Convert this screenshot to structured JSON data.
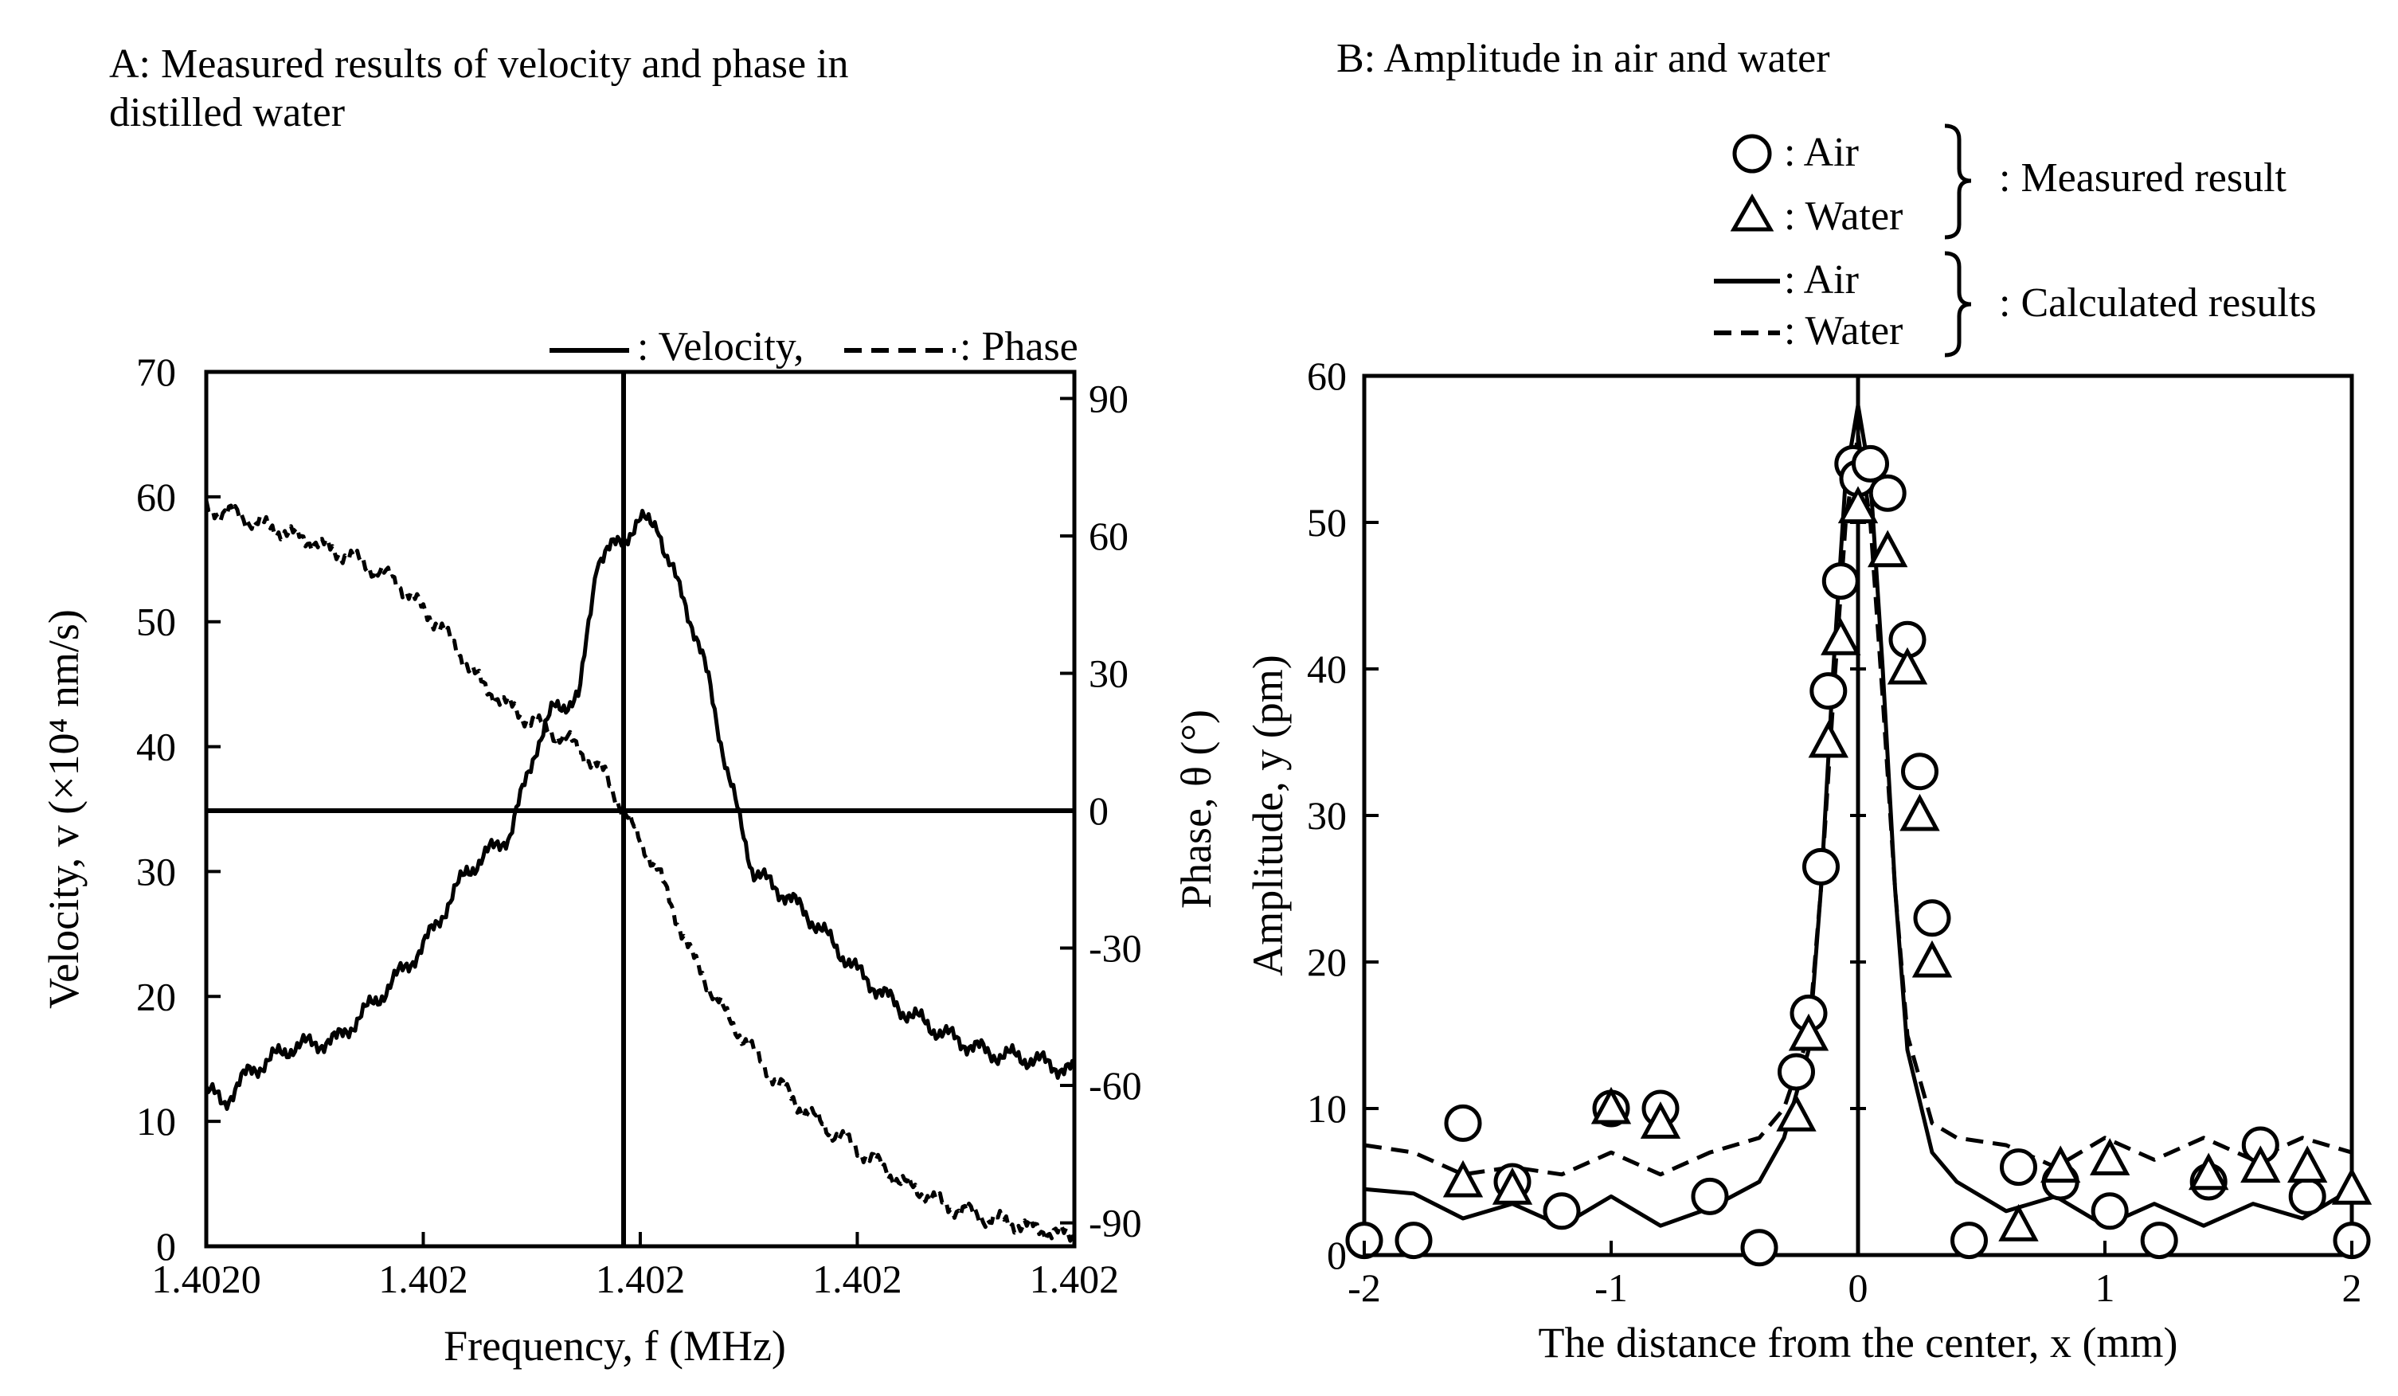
{
  "panel_a": {
    "title_line1": "A: Measured results of velocity and phase in",
    "title_line2": "distilled water",
    "legend_velocity": ": Velocity,",
    "legend_phase": ": Phase",
    "ylabel_left": "Velocity, v (×10⁴ nm/s)",
    "ylabel_right": "Phase,  θ  (°)",
    "xlabel": "Frequency, f (MHz)"
  },
  "panel_b": {
    "title": "B: Amplitude in air and water",
    "legend_air": ": Air",
    "legend_water": ": Water",
    "legend_measured": ": Measured result",
    "legend_calculated": ": Calculated results",
    "ylabel": "Amplitude, y (pm)",
    "xlabel": "The distance from the center, x (mm)"
  },
  "chart_data": [
    {
      "type": "line",
      "title": "A: Measured results of velocity and phase in distilled water",
      "xlabel": "Frequency, f (MHz)",
      "ylabel": "Velocity, v (×10⁴ nm/s)",
      "y2label": "Phase, θ (°)",
      "x_tick_labels": [
        "1.4020",
        "1.402",
        "1.402",
        "1.402",
        "1.402"
      ],
      "xlim": [
        0,
        1
      ],
      "ylim": [
        0,
        70
      ],
      "y_ticks": [
        0,
        10,
        20,
        30,
        40,
        50,
        60,
        70
      ],
      "y2lim": [
        -100,
        100
      ],
      "y2_ticks": [
        90,
        60,
        30,
        0,
        -30,
        -60,
        -90
      ],
      "reference_lines": {
        "x_fraction": 0.48,
        "phase_zero": 0
      },
      "series": [
        {
          "name": "Velocity",
          "axis": "left",
          "style": "solid",
          "x": [
            0,
            0.02,
            0.05,
            0.1,
            0.15,
            0.2,
            0.25,
            0.3,
            0.35,
            0.38,
            0.4,
            0.43,
            0.45,
            0.47,
            0.5,
            0.52,
            0.53,
            0.55,
            0.58,
            0.6,
            0.63,
            0.65,
            0.67,
            0.7,
            0.75,
            0.8,
            0.85,
            0.9,
            0.95,
            1.0
          ],
          "values": [
            12.5,
            11.5,
            14,
            16,
            16.5,
            20,
            24,
            30,
            33,
            40,
            43,
            44,
            55,
            56,
            58,
            58,
            55,
            52,
            45,
            38,
            30,
            29,
            28,
            26,
            22,
            19,
            17,
            15.5,
            15,
            14
          ]
        },
        {
          "name": "Phase",
          "axis": "right",
          "style": "dashed",
          "x": [
            0,
            0.03,
            0.07,
            0.12,
            0.17,
            0.22,
            0.27,
            0.32,
            0.37,
            0.42,
            0.46,
            0.48,
            0.52,
            0.56,
            0.6,
            0.64,
            0.68,
            0.72,
            0.76,
            0.8,
            0.85,
            0.9,
            0.95,
            1.0
          ],
          "values": [
            66,
            65,
            62,
            59,
            55,
            50,
            40,
            27,
            20,
            15,
            8,
            0,
            -13,
            -32,
            -45,
            -55,
            -64,
            -70,
            -75,
            -81,
            -86,
            -89,
            -91,
            -93
          ]
        }
      ]
    },
    {
      "type": "scatter",
      "title": "B: Amplitude in air and water",
      "xlabel": "The distance from the center, x (mm)",
      "ylabel": "Amplitude, y (pm)",
      "xlim": [
        -2,
        2
      ],
      "x_ticks": [
        -2,
        -1,
        0,
        1,
        2
      ],
      "ylim": [
        0,
        60
      ],
      "y_ticks": [
        0,
        10,
        20,
        30,
        40,
        50,
        60
      ],
      "series": [
        {
          "name": "Air (measured)",
          "marker": "circle",
          "x": [
            -2.0,
            -1.8,
            -1.6,
            -1.4,
            -1.2,
            -1.0,
            -0.8,
            -0.6,
            -0.4,
            -0.25,
            -0.2,
            -0.15,
            -0.12,
            -0.07,
            -0.02,
            0.0,
            0.05,
            0.12,
            0.2,
            0.25,
            0.3,
            0.45,
            0.65,
            0.82,
            1.02,
            1.22,
            1.42,
            1.63,
            1.82,
            2.0
          ],
          "values": [
            1,
            1,
            9,
            5,
            3,
            10,
            10,
            4,
            0.5,
            12.5,
            16.5,
            26.5,
            38.5,
            46,
            54,
            53,
            54,
            52,
            42,
            33,
            23,
            1,
            6,
            5,
            3,
            1,
            5,
            7.5,
            4,
            1
          ]
        },
        {
          "name": "Water (measured)",
          "marker": "triangle",
          "x": [
            -1.6,
            -1.4,
            -1.0,
            -0.8,
            -0.25,
            -0.2,
            -0.12,
            -0.07,
            0.0,
            0.12,
            0.2,
            0.25,
            0.3,
            0.65,
            0.82,
            1.02,
            1.42,
            1.63,
            1.82,
            2.0
          ],
          "values": [
            5,
            4.5,
            10,
            9,
            9.5,
            15,
            35,
            42,
            51,
            48,
            40,
            30,
            20,
            2,
            6,
            6.5,
            5.5,
            6,
            6,
            4.5
          ]
        },
        {
          "name": "Air (calculated)",
          "style": "solid",
          "x": [
            -2.0,
            -1.8,
            -1.6,
            -1.4,
            -1.2,
            -1.0,
            -0.8,
            -0.6,
            -0.4,
            -0.3,
            -0.2,
            -0.15,
            -0.1,
            -0.05,
            0.0,
            0.05,
            0.1,
            0.15,
            0.2,
            0.3,
            0.4,
            0.6,
            0.8,
            1.0,
            1.2,
            1.4,
            1.6,
            1.8,
            2.0
          ],
          "values": [
            4.5,
            4.2,
            2.5,
            3.5,
            2.0,
            4.0,
            2.0,
            3.2,
            5.0,
            8.0,
            14.0,
            25.0,
            40.0,
            53.0,
            58.0,
            53.0,
            40.0,
            25.0,
            14.0,
            7.0,
            5.0,
            3.0,
            4.0,
            2.0,
            3.5,
            2.0,
            3.5,
            2.5,
            4.5
          ]
        },
        {
          "name": "Water (calculated)",
          "style": "dashed",
          "x": [
            -2.0,
            -1.8,
            -1.6,
            -1.4,
            -1.2,
            -1.0,
            -0.8,
            -0.6,
            -0.4,
            -0.3,
            -0.2,
            -0.15,
            -0.1,
            -0.05,
            0.0,
            0.05,
            0.1,
            0.15,
            0.2,
            0.3,
            0.4,
            0.6,
            0.8,
            1.0,
            1.2,
            1.4,
            1.6,
            1.8,
            2.0
          ],
          "values": [
            7.5,
            7.0,
            5.5,
            6.0,
            5.5,
            7.0,
            5.5,
            7.0,
            8.0,
            10.0,
            15.0,
            25.0,
            38.0,
            50.0,
            56.0,
            50.0,
            38.0,
            25.0,
            15.0,
            9.0,
            8.0,
            7.5,
            6.0,
            8.0,
            6.5,
            8.0,
            6.5,
            8.0,
            7.0
          ]
        }
      ]
    }
  ]
}
